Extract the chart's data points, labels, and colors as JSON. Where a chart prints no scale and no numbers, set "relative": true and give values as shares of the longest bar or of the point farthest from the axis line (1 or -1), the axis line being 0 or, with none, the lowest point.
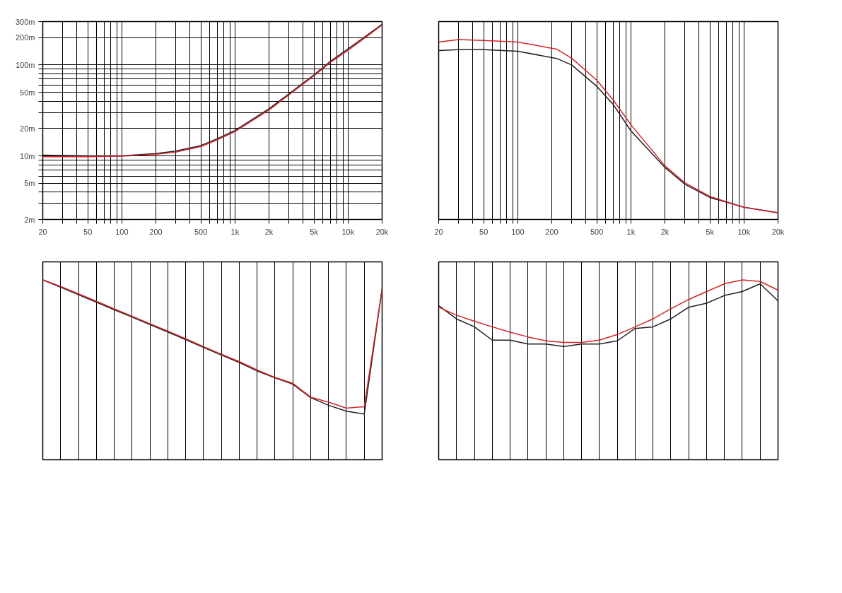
{
  "chart_data": [
    {
      "type": "line",
      "log": "xy",
      "grid": true,
      "x": [
        20,
        50,
        100,
        200,
        300,
        500,
        700,
        1000,
        2000,
        3000,
        5000,
        7000,
        10000,
        20000
      ],
      "xlim": [
        20,
        20000
      ],
      "xticks": [
        20,
        {
          "value": 30,
          "label": null
        },
        {
          "value": 40,
          "label": null
        },
        50,
        {
          "value": 60,
          "label": null
        },
        {
          "value": 70,
          "label": null
        },
        {
          "value": 80,
          "label": null
        },
        {
          "value": 90,
          "label": null
        },
        100,
        200,
        {
          "value": 300,
          "label": null
        },
        {
          "value": 400,
          "label": null
        },
        500,
        {
          "value": 600,
          "label": null
        },
        {
          "value": 700,
          "label": null
        },
        {
          "value": 800,
          "label": null
        },
        {
          "value": 900,
          "label": null
        },
        {
          "value": 1000,
          "label": "1k"
        },
        {
          "value": 2000,
          "label": "2k"
        },
        {
          "value": 3000,
          "label": null
        },
        {
          "value": 4000,
          "label": null
        },
        {
          "value": 5000,
          "label": "5k"
        },
        {
          "value": 6000,
          "label": null
        },
        {
          "value": 7000,
          "label": null
        },
        {
          "value": 8000,
          "label": null
        },
        {
          "value": 9000,
          "label": null
        },
        {
          "value": 10000,
          "label": "10k"
        },
        {
          "value": 20000,
          "label": "20k"
        }
      ],
      "ylim": [
        2,
        300
      ],
      "yticks": [
        {
          "value": 2,
          "label": "2m"
        },
        {
          "value": 3,
          "label": null
        },
        {
          "value": 4,
          "label": null
        },
        {
          "value": 5,
          "label": "5m"
        },
        {
          "value": 6,
          "label": null
        },
        {
          "value": 7,
          "label": null
        },
        {
          "value": 8,
          "label": null
        },
        {
          "value": 9,
          "label": null
        },
        {
          "value": 10,
          "label": "10m"
        },
        {
          "value": 20,
          "label": "20m"
        },
        {
          "value": 30,
          "label": null
        },
        {
          "value": 40,
          "label": null
        },
        {
          "value": 50,
          "label": "50m"
        },
        {
          "value": 60,
          "label": null
        },
        {
          "value": 70,
          "label": null
        },
        {
          "value": 80,
          "label": null
        },
        {
          "value": 90,
          "label": null
        },
        {
          "value": 100,
          "label": "100m"
        },
        {
          "value": 200,
          "label": "200m"
        },
        {
          "value": 300,
          "label": "300m"
        }
      ],
      "series": [
        {
          "color": "#231f20",
          "values": [
            10.2,
            10.0,
            10.0,
            10.6,
            11.3,
            13.0,
            15.5,
            19.0,
            33,
            48,
            78,
            110,
            150,
            280
          ]
        },
        {
          "color": "#d2232a",
          "values": [
            9.8,
            9.8,
            9.9,
            10.4,
            11.0,
            12.7,
            15.0,
            18.5,
            32,
            47,
            76,
            107,
            145,
            275
          ]
        }
      ]
    },
    {
      "type": "line",
      "log": "x",
      "relative": true,
      "grid": "x",
      "tick_labels": "x",
      "x": [
        20,
        30,
        50,
        100,
        220,
        300,
        500,
        700,
        1000,
        2000,
        3000,
        5000,
        10000,
        20000
      ],
      "xlim": [
        20,
        20000
      ],
      "xticks": [
        20,
        {
          "value": 30,
          "label": null
        },
        {
          "value": 40,
          "label": null
        },
        50,
        {
          "value": 60,
          "label": null
        },
        {
          "value": 70,
          "label": null
        },
        {
          "value": 80,
          "label": null
        },
        {
          "value": 90,
          "label": null
        },
        100,
        200,
        {
          "value": 300,
          "label": null
        },
        {
          "value": 400,
          "label": null
        },
        500,
        {
          "value": 600,
          "label": null
        },
        {
          "value": 700,
          "label": null
        },
        {
          "value": 800,
          "label": null
        },
        {
          "value": 900,
          "label": null
        },
        {
          "value": 1000,
          "label": "1k"
        },
        {
          "value": 2000,
          "label": "2k"
        },
        {
          "value": 3000,
          "label": null
        },
        {
          "value": 4000,
          "label": null
        },
        {
          "value": 5000,
          "label": "5k"
        },
        {
          "value": 6000,
          "label": null
        },
        {
          "value": 7000,
          "label": null
        },
        {
          "value": 8000,
          "label": null
        },
        {
          "value": 9000,
          "label": null
        },
        {
          "value": 10000,
          "label": "10k"
        },
        {
          "value": 20000,
          "label": "20k"
        }
      ],
      "series": [
        {
          "color": "#231f20",
          "values": [
            0.939,
            0.944,
            0.944,
            0.935,
            0.895,
            0.859,
            0.74,
            0.638,
            0.493,
            0.289,
            0.196,
            0.122,
            0.068,
            0.037
          ]
        },
        {
          "color": "#d2232a",
          "values": [
            0.986,
            1.0,
            0.995,
            0.986,
            0.947,
            0.896,
            0.774,
            0.663,
            0.527,
            0.298,
            0.204,
            0.128,
            0.068,
            0.037
          ]
        }
      ]
    },
    {
      "type": "line",
      "relative": true,
      "grid": "x",
      "tick_labels": false,
      "categories": [
        null,
        null,
        null,
        null,
        null,
        null,
        null,
        null,
        null,
        null,
        null,
        null,
        null,
        null,
        null,
        null,
        null,
        null,
        null,
        null
      ],
      "series": [
        {
          "color": "#231f20",
          "values": [
            1.0,
            0.959,
            0.917,
            0.876,
            0.834,
            0.793,
            0.751,
            0.71,
            0.668,
            0.624,
            0.582,
            0.541,
            0.494,
            0.456,
            0.42,
            0.345,
            0.303,
            0.27,
            0.254,
            0.95
          ]
        },
        {
          "color": "#d2232a",
          "values": [
            1.0,
            0.964,
            0.922,
            0.881,
            0.839,
            0.798,
            0.756,
            0.715,
            0.673,
            0.629,
            0.587,
            0.546,
            0.499,
            0.458,
            0.425,
            0.348,
            0.32,
            0.287,
            0.295,
            0.95
          ]
        }
      ]
    },
    {
      "type": "line",
      "relative": true,
      "grid": "x",
      "tick_labels": false,
      "categories": [
        null,
        null,
        null,
        null,
        null,
        null,
        null,
        null,
        null,
        null,
        null,
        null,
        null,
        null,
        null,
        null,
        null,
        null,
        null,
        null
      ],
      "series": [
        {
          "color": "#231f20",
          "values": [
            0.857,
            0.783,
            0.739,
            0.665,
            0.665,
            0.643,
            0.643,
            0.63,
            0.643,
            0.643,
            0.661,
            0.73,
            0.739,
            0.783,
            0.848,
            0.87,
            0.913,
            0.935,
            0.978,
            0.883
          ]
        },
        {
          "color": "#d2232a",
          "values": [
            0.848,
            0.804,
            0.77,
            0.739,
            0.709,
            0.683,
            0.661,
            0.652,
            0.652,
            0.665,
            0.696,
            0.739,
            0.783,
            0.839,
            0.891,
            0.935,
            0.978,
            1.0,
            0.991,
            0.943
          ]
        }
      ]
    }
  ]
}
